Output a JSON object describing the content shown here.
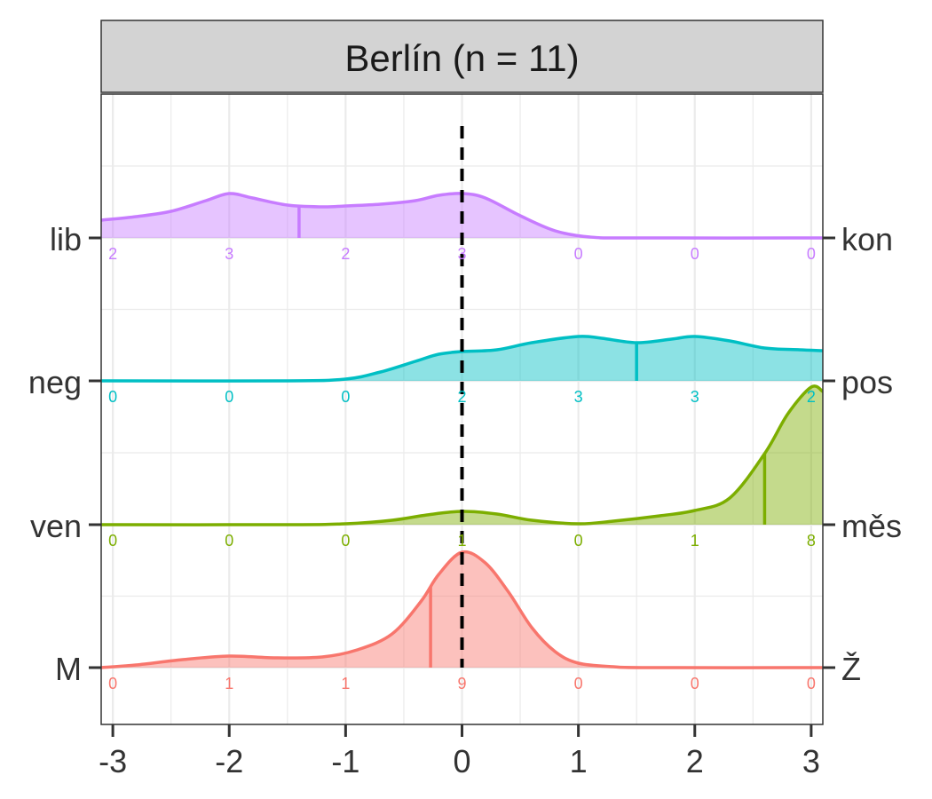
{
  "chart_data": {
    "type": "area",
    "title": "Berlín (n = 11)",
    "xlabel": "",
    "ylabel": "",
    "xlim": [
      -3.1,
      3.1
    ],
    "x_ticks": [
      -3,
      -2,
      -1,
      0,
      1,
      2,
      3
    ],
    "x_tick_labels": [
      "-3",
      "-2",
      "-1",
      "0",
      "1",
      "2",
      "3"
    ],
    "grid": true,
    "reference_line_x": 0,
    "series": [
      {
        "left_label": "lib",
        "right_label": "kon",
        "color": "#C77CFF",
        "counts": [
          2,
          3,
          2,
          3,
          0,
          0,
          0
        ],
        "mean": -1.4,
        "density": [
          [
            -3.1,
            0.2
          ],
          [
            -2.8,
            0.24
          ],
          [
            -2.5,
            0.3
          ],
          [
            -2.2,
            0.42
          ],
          [
            -2.0,
            0.5
          ],
          [
            -1.8,
            0.45
          ],
          [
            -1.5,
            0.37
          ],
          [
            -1.2,
            0.35
          ],
          [
            -1.0,
            0.36
          ],
          [
            -0.7,
            0.38
          ],
          [
            -0.4,
            0.42
          ],
          [
            -0.2,
            0.48
          ],
          [
            0,
            0.5
          ],
          [
            0.2,
            0.45
          ],
          [
            0.5,
            0.25
          ],
          [
            0.8,
            0.08
          ],
          [
            1.1,
            0.01
          ],
          [
            1.5,
            0
          ],
          [
            3.1,
            0
          ]
        ]
      },
      {
        "left_label": "neg",
        "right_label": "pos",
        "color": "#00BFC4",
        "counts": [
          0,
          0,
          0,
          2,
          3,
          3,
          2
        ],
        "mean": 1.5,
        "density": [
          [
            -3.1,
            0
          ],
          [
            -1.5,
            0
          ],
          [
            -1.0,
            0.02
          ],
          [
            -0.7,
            0.1
          ],
          [
            -0.4,
            0.22
          ],
          [
            -0.2,
            0.3
          ],
          [
            0,
            0.33
          ],
          [
            0.3,
            0.35
          ],
          [
            0.6,
            0.43
          ],
          [
            1.0,
            0.5
          ],
          [
            1.2,
            0.48
          ],
          [
            1.5,
            0.43
          ],
          [
            1.8,
            0.47
          ],
          [
            2.0,
            0.5
          ],
          [
            2.3,
            0.45
          ],
          [
            2.6,
            0.37
          ],
          [
            2.9,
            0.35
          ],
          [
            3.1,
            0.34
          ]
        ]
      },
      {
        "left_label": "ven",
        "right_label": "měs",
        "color": "#7CAE00",
        "counts": [
          0,
          0,
          0,
          1,
          0,
          1,
          8
        ],
        "mean": 2.6,
        "density": [
          [
            -3.1,
            0
          ],
          [
            -1.5,
            0
          ],
          [
            -1.0,
            0.01
          ],
          [
            -0.6,
            0.05
          ],
          [
            -0.3,
            0.11
          ],
          [
            0,
            0.15
          ],
          [
            0.3,
            0.12
          ],
          [
            0.6,
            0.05
          ],
          [
            1.0,
            0.01
          ],
          [
            1.3,
            0.04
          ],
          [
            1.7,
            0.1
          ],
          [
            2.0,
            0.16
          ],
          [
            2.3,
            0.3
          ],
          [
            2.6,
            0.8
          ],
          [
            2.8,
            1.25
          ],
          [
            3.0,
            1.55
          ],
          [
            3.1,
            1.5
          ]
        ]
      },
      {
        "left_label": "M",
        "right_label": "Ž",
        "color": "#F8766D",
        "counts": [
          0,
          1,
          1,
          9,
          0,
          0,
          0
        ],
        "mean": -0.27,
        "density": [
          [
            -3.1,
            0
          ],
          [
            -2.8,
            0.03
          ],
          [
            -2.4,
            0.09
          ],
          [
            -2.0,
            0.13
          ],
          [
            -1.6,
            0.11
          ],
          [
            -1.2,
            0.12
          ],
          [
            -0.9,
            0.2
          ],
          [
            -0.6,
            0.38
          ],
          [
            -0.35,
            0.75
          ],
          [
            -0.2,
            1.05
          ],
          [
            0,
            1.3
          ],
          [
            0.2,
            1.18
          ],
          [
            0.4,
            0.85
          ],
          [
            0.6,
            0.45
          ],
          [
            0.8,
            0.18
          ],
          [
            1.0,
            0.05
          ],
          [
            1.3,
            0.01
          ],
          [
            1.6,
            0
          ],
          [
            3.1,
            0
          ]
        ]
      }
    ]
  }
}
